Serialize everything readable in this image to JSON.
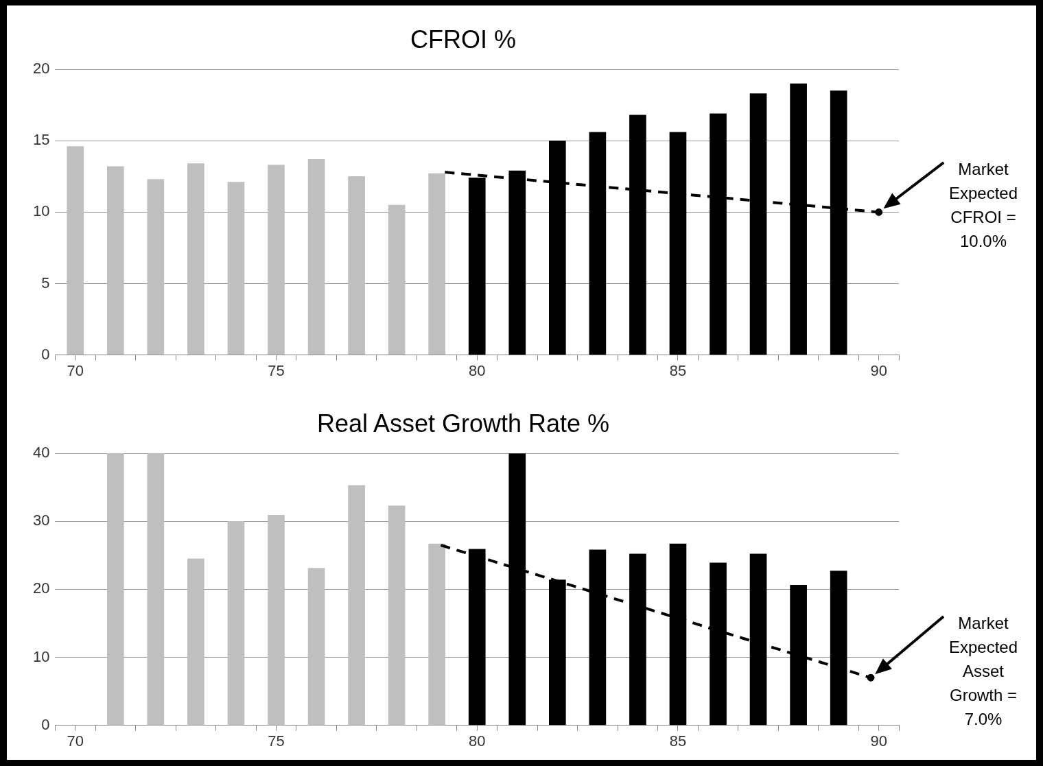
{
  "chart_data": [
    {
      "type": "bar",
      "title": "CFROI %",
      "x": [
        70,
        71,
        72,
        73,
        74,
        75,
        76,
        77,
        78,
        79,
        80,
        81,
        82,
        83,
        84,
        85,
        86,
        87,
        88,
        89
      ],
      "series": [
        {
          "colors": [
            "#bfbfbf",
            "#bfbfbf",
            "#bfbfbf",
            "#bfbfbf",
            "#bfbfbf",
            "#bfbfbf",
            "#bfbfbf",
            "#bfbfbf",
            "#bfbfbf",
            "#bfbfbf",
            "#000000",
            "#000000",
            "#000000",
            "#000000",
            "#000000",
            "#000000",
            "#000000",
            "#000000",
            "#000000",
            "#000000"
          ],
          "values": [
            14.6,
            13.2,
            12.3,
            13.4,
            12.1,
            13.3,
            13.7,
            12.5,
            10.5,
            12.7,
            12.4,
            12.9,
            15.0,
            15.6,
            16.8,
            15.6,
            16.9,
            18.3,
            19.0,
            18.5
          ]
        },
        {
          "type": "line",
          "x": [
            79.2,
            90
          ],
          "values": [
            12.8,
            10.0
          ],
          "color": "#000000",
          "line_style": "dashed",
          "marker": "none"
        },
        {
          "type": "scatter",
          "x": [
            90
          ],
          "values": [
            10.0
          ],
          "color": "#000000",
          "marker": "circle"
        }
      ],
      "xlim": [
        69.5,
        90.5
      ],
      "xticks": [
        {
          "value": 69.5,
          "label": null
        },
        70,
        {
          "value": 70.5,
          "label": null
        },
        {
          "value": 71.5,
          "label": null
        },
        {
          "value": 72.5,
          "label": null
        },
        {
          "value": 73.5,
          "label": null
        },
        {
          "value": 74.5,
          "label": null
        },
        75,
        {
          "value": 75.5,
          "label": null
        },
        {
          "value": 76.5,
          "label": null
        },
        {
          "value": 77.5,
          "label": null
        },
        {
          "value": 78.5,
          "label": null
        },
        {
          "value": 79.5,
          "label": null
        },
        80,
        {
          "value": 80.5,
          "label": null
        },
        {
          "value": 81.5,
          "label": null
        },
        {
          "value": 82.5,
          "label": null
        },
        {
          "value": 83.5,
          "label": null
        },
        {
          "value": 84.5,
          "label": null
        },
        85,
        {
          "value": 85.5,
          "label": null
        },
        {
          "value": 86.5,
          "label": null
        },
        {
          "value": 87.5,
          "label": null
        },
        {
          "value": 88.5,
          "label": null
        },
        {
          "value": 89.5,
          "label": null
        },
        90,
        {
          "value": 90.5,
          "label": null
        }
      ],
      "ylim": [
        0,
        20
      ],
      "yticks": [
        0,
        5,
        10,
        15,
        20
      ],
      "grid": "y",
      "annotations": [
        "Market Expected CFROI = 10.0%"
      ]
    },
    {
      "type": "bar",
      "title": "Real Asset Growth Rate %",
      "x": [
        71,
        72,
        73,
        74,
        75,
        76,
        77,
        78,
        79,
        80,
        81,
        82,
        83,
        84,
        85,
        86,
        87,
        88,
        89
      ],
      "series": [
        {
          "colors": [
            "#bfbfbf",
            "#bfbfbf",
            "#bfbfbf",
            "#bfbfbf",
            "#bfbfbf",
            "#bfbfbf",
            "#bfbfbf",
            "#bfbfbf",
            "#bfbfbf",
            "#000000",
            "#000000",
            "#000000",
            "#000000",
            "#000000",
            "#000000",
            "#000000",
            "#000000",
            "#000000",
            "#000000"
          ],
          "values": [
            40,
            40,
            24.5,
            30.0,
            30.9,
            23.1,
            35.3,
            32.3,
            26.7,
            25.9,
            40,
            21.4,
            25.8,
            25.2,
            26.7,
            23.9,
            25.2,
            20.6,
            22.7
          ]
        },
        {
          "type": "line",
          "x": [
            79.1,
            89.8
          ],
          "values": [
            26.5,
            7.0
          ],
          "color": "#000000",
          "line_style": "dashed",
          "marker": "none"
        },
        {
          "type": "scatter",
          "x": [
            89.8
          ],
          "values": [
            7.0
          ],
          "color": "#000000",
          "marker": "circle"
        }
      ],
      "xlim": [
        69.5,
        90.5
      ],
      "xticks": [
        {
          "value": 69.5,
          "label": null
        },
        70,
        {
          "value": 70.5,
          "label": null
        },
        {
          "value": 71.5,
          "label": null
        },
        {
          "value": 72.5,
          "label": null
        },
        {
          "value": 73.5,
          "label": null
        },
        {
          "value": 74.5,
          "label": null
        },
        75,
        {
          "value": 75.5,
          "label": null
        },
        {
          "value": 76.5,
          "label": null
        },
        {
          "value": 77.5,
          "label": null
        },
        {
          "value": 78.5,
          "label": null
        },
        {
          "value": 79.5,
          "label": null
        },
        80,
        {
          "value": 80.5,
          "label": null
        },
        {
          "value": 81.5,
          "label": null
        },
        {
          "value": 82.5,
          "label": null
        },
        {
          "value": 83.5,
          "label": null
        },
        {
          "value": 84.5,
          "label": null
        },
        85,
        {
          "value": 85.5,
          "label": null
        },
        {
          "value": 86.5,
          "label": null
        },
        {
          "value": 87.5,
          "label": null
        },
        {
          "value": 88.5,
          "label": null
        },
        {
          "value": 89.5,
          "label": null
        },
        90,
        {
          "value": 90.5,
          "label": null
        }
      ],
      "ylim": [
        0,
        40
      ],
      "yticks": [
        0,
        10,
        20,
        30,
        40
      ],
      "grid": "y",
      "annotations": [
        "Market Expected Asset Growth = 7.0%"
      ]
    }
  ]
}
